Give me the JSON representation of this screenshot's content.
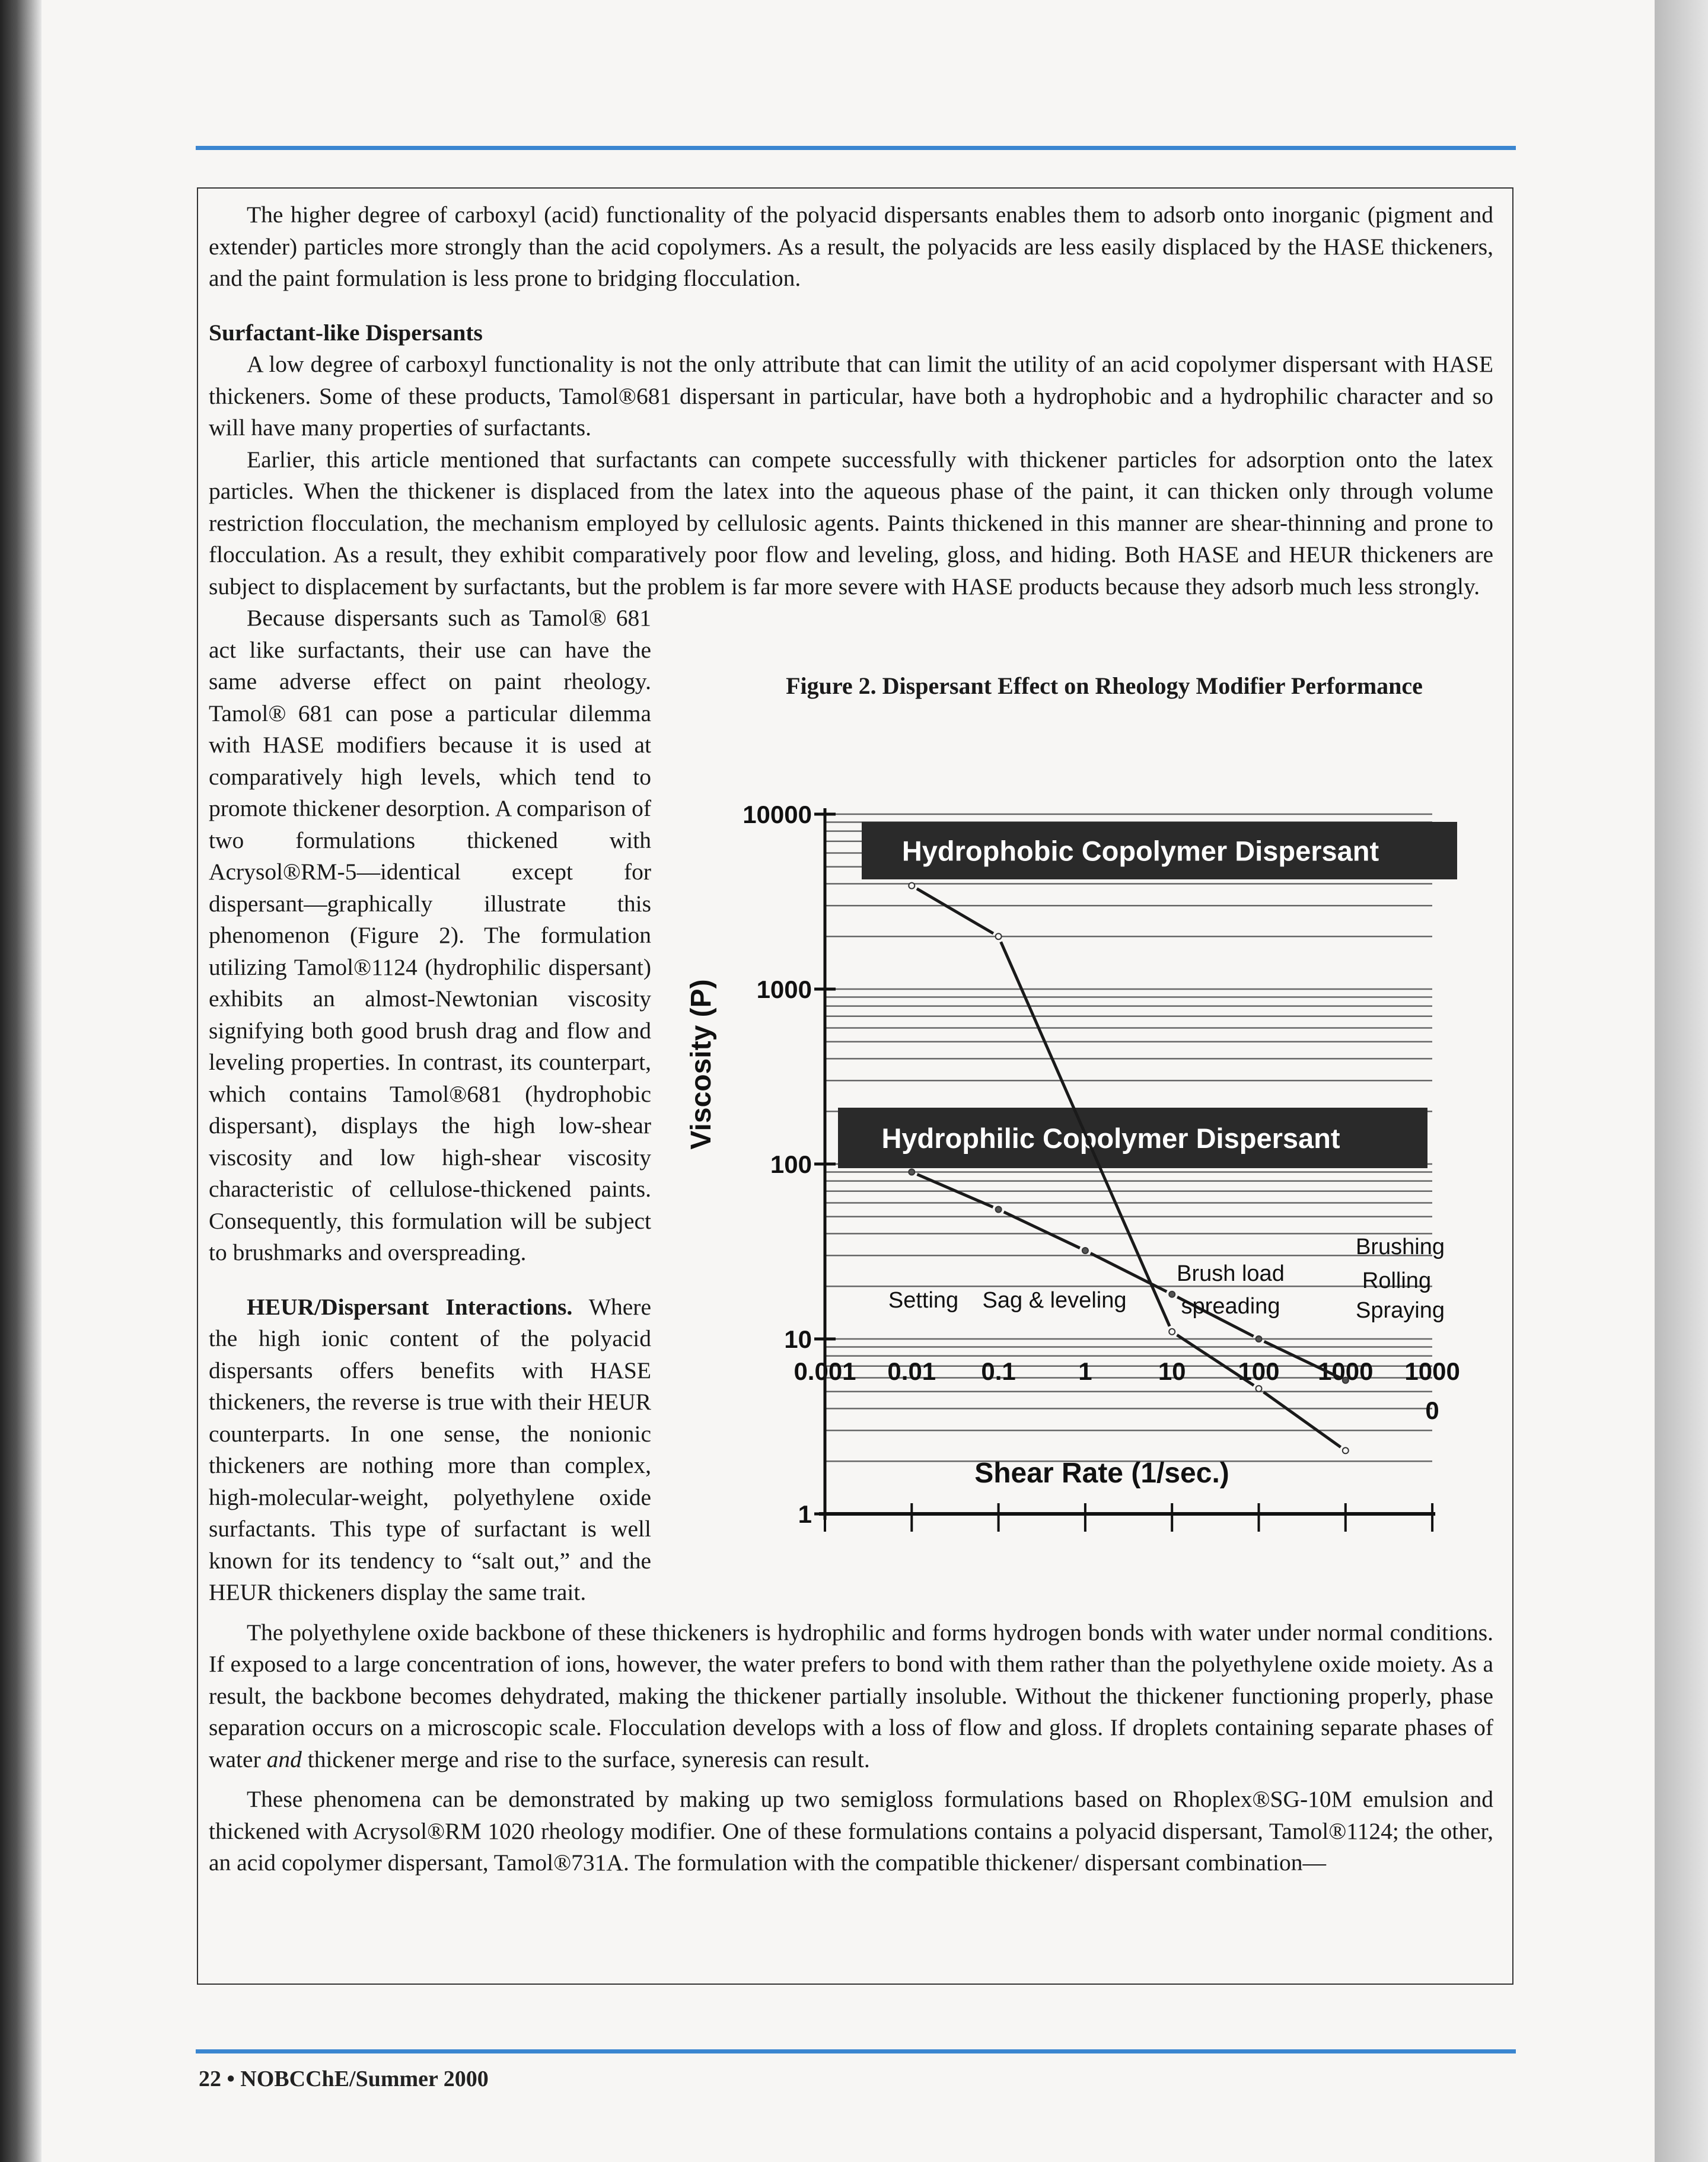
{
  "paragraphs": {
    "p1": "The higher degree of carboxyl (acid) functionality of the polyacid dispersants enables them to adsorb onto inorganic (pigment and extender) particles more strongly than the acid copolymers. As a result, the polyacids are less easily displaced by the HASE thickeners, and the paint formulation is less prone to bridging flocculation.",
    "h_surfactant": "Surfactant-like Dispersants",
    "p2": "A low degree of carboxyl functionality is not the only attribute that can limit the utility of an acid copolymer dispersant with HASE thickeners. Some of these products, Tamol®681 dispersant in particular, have both a hydrophobic and a hydrophilic character and so will have many properties of surfactants.",
    "p3": "Earlier, this article mentioned that surfactants can compete successfully with thickener particles for adsorption onto the latex particles. When the thickener is displaced from the latex into the aqueous phase of the paint, it can thicken only through volume restriction flocculation, the mechanism employed by cellulosic agents. Paints thickened in this manner are shear-thinning and prone to flocculation. As a result, they exhibit comparatively poor flow and leveling, gloss, and hiding. Both HASE and HEUR thickeners are subject to displacement by surfactants, but the problem is far more severe with HASE products because they adsorb much less strongly.",
    "p4": "Because dispersants such as Tamol® 681 act like surfactants, their use can have the same adverse effect on paint rheology. Tamol® 681 can pose a particular dilemma with HASE modifiers because it is used at comparatively high levels, which tend to promote thickener desorption. A comparison of two formulations thickened with Acrysol®RM-5—identical except for dispersant—graphically illustrate this phenomenon (Figure 2). The formulation utilizing Tamol®1124 (hydrophilic dispersant) exhibits an almost-Newtonian viscosity signifying both good brush drag and flow and leveling properties. In contrast, its counterpart, which contains Tamol®681 (hydrophobic dispersant), displays the high low-shear viscosity and low high-shear viscosity characteristic of cellulose-thickened paints. Consequently, this formulation will be subject to brushmarks and overspreading.",
    "h_heur": "HEUR/Dispersant Interactions.",
    "p5": "Where the high ionic content of the polyacid dispersants offers benefits with HASE thickeners, the reverse is true with their HEUR counterparts. In one sense, the nonionic thickeners are nothing more than complex, high-molecular-weight, polyethylene oxide surfactants. This type of surfactant is well known for its tendency to “salt out,” and the HEUR thickeners display the same trait.",
    "p6a": "The polyethylene oxide backbone of these thickeners is hydrophilic and forms hydrogen bonds with water under normal conditions. If exposed to a large concentration of ions, however, the water prefers to bond with them rather than the polyethylene oxide moiety. As a result, the backbone becomes dehydrated, making the thickener partially insoluble. Without the thickener functioning properly, phase separation occurs on a microscopic scale. Flocculation develops with a loss of flow and gloss. If droplets containing separate phases of water ",
    "p6_em": "and",
    "p6b": " thickener merge and rise to the surface, syneresis can result.",
    "p7": "These phenomena can be demonstrated by making up two semigloss formulations based on Rhoplex®SG-10M emulsion and thickened with Acrysol®RM 1020 rheology modifier. One of these formulations contains a polyacid dispersant, Tamol®1124; the other, an acid copolymer dispersant, Tamol®731A. The formulation with the compatible thickener/ dispersant combination—"
  },
  "footer": "22 • NOBCChE/Summer 2000",
  "colors": {
    "rule": "#3b86d0",
    "banner": "#2a2a2a"
  },
  "chart_data": {
    "type": "line",
    "title": "Figure 2. Dispersant Effect on Rheology Modifier Performance",
    "xlabel": "Shear Rate (1/sec.)",
    "ylabel": "Viscosity (P)",
    "xscale": "log",
    "yscale": "log",
    "xlim": [
      0.001,
      10000
    ],
    "ylim": [
      1,
      10000
    ],
    "x_tick_labels": [
      "0.001",
      "0.01",
      "0.1",
      "1",
      "10",
      "100",
      "1000",
      "1000\n0"
    ],
    "y_tick_labels": [
      "1",
      "10",
      "100",
      "1000",
      "10000"
    ],
    "grid": true,
    "series": [
      {
        "name": "Hydrophobic Copolymer Dispersant",
        "x": [
          0.01,
          0.1,
          10,
          100,
          1000
        ],
        "y": [
          3900,
          2000,
          11,
          5.2,
          2.3
        ]
      },
      {
        "name": "Hydrophilic Copolymer Dispersant",
        "x": [
          0.01,
          0.1,
          1,
          10,
          100,
          1000
        ],
        "y": [
          90,
          55,
          32,
          18,
          10,
          5.8
        ]
      }
    ],
    "annotations": [
      "Setting",
      "Sag & leveling",
      "Brush load",
      "spreading",
      "Brushing",
      "Rolling",
      "Spraying"
    ]
  }
}
